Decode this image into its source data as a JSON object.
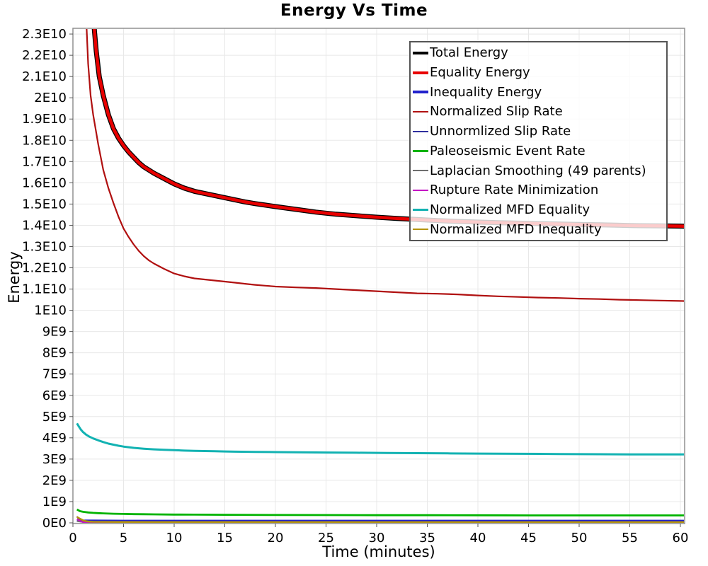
{
  "title": "Energy Vs Time",
  "x_axis": {
    "title": "Time (minutes)",
    "ticks": [
      0,
      5,
      10,
      15,
      20,
      25,
      30,
      35,
      40,
      45,
      50,
      55,
      60
    ]
  },
  "y_axis": {
    "title": "Energy",
    "ticks": [
      {
        "v": 0,
        "label": "0E0"
      },
      {
        "v": 1,
        "label": "1E9"
      },
      {
        "v": 2,
        "label": "2E9"
      },
      {
        "v": 3,
        "label": "3E9"
      },
      {
        "v": 4,
        "label": "4E9"
      },
      {
        "v": 5,
        "label": "5E9"
      },
      {
        "v": 6,
        "label": "6E9"
      },
      {
        "v": 7,
        "label": "7E9"
      },
      {
        "v": 8,
        "label": "8E9"
      },
      {
        "v": 9,
        "label": "9E9"
      },
      {
        "v": 10,
        "label": "1E10"
      },
      {
        "v": 11,
        "label": "1.1E10"
      },
      {
        "v": 12,
        "label": "1.2E10"
      },
      {
        "v": 13,
        "label": "1.3E10"
      },
      {
        "v": 14,
        "label": "1.4E10"
      },
      {
        "v": 15,
        "label": "1.5E10"
      },
      {
        "v": 16,
        "label": "1.6E10"
      },
      {
        "v": 17,
        "label": "1.7E10"
      },
      {
        "v": 18,
        "label": "1.8E10"
      },
      {
        "v": 19,
        "label": "1.9E10"
      },
      {
        "v": 20,
        "label": "2E10"
      },
      {
        "v": 21,
        "label": "2.1E10"
      },
      {
        "v": 22,
        "label": "2.2E10"
      },
      {
        "v": 23,
        "label": "2.3E10"
      }
    ]
  },
  "colors": {
    "gridline": "#e8e8e8",
    "plot_border": "#909090",
    "tick": "#555555",
    "legend_border": "#555555"
  },
  "chart_data": {
    "type": "line",
    "title": "Energy Vs Time",
    "xlabel": "Time (minutes)",
    "ylabel": "Energy",
    "xlim": [
      0,
      60.4
    ],
    "ylim": [
      0,
      23300000000
    ],
    "grid": true,
    "legend_position": "upper-right-inside",
    "values_unit": "y values in units of 1e9 (giga)",
    "series": [
      {
        "name": "Total Energy",
        "color": "#000000",
        "lw": 7,
        "points": [
          [
            1.8,
            28
          ],
          [
            1.95,
            25.5
          ],
          [
            2.1,
            23.3
          ],
          [
            2.3,
            22.2
          ],
          [
            2.6,
            21.0
          ],
          [
            3.0,
            20.1
          ],
          [
            3.5,
            19.2
          ],
          [
            4.0,
            18.55
          ],
          [
            4.5,
            18.1
          ],
          [
            5.0,
            17.75
          ],
          [
            5.5,
            17.45
          ],
          [
            6.0,
            17.2
          ],
          [
            6.5,
            16.95
          ],
          [
            7.0,
            16.75
          ],
          [
            7.5,
            16.6
          ],
          [
            8.0,
            16.45
          ],
          [
            9.0,
            16.2
          ],
          [
            10,
            15.95
          ],
          [
            11,
            15.75
          ],
          [
            12,
            15.6
          ],
          [
            13,
            15.5
          ],
          [
            14,
            15.4
          ],
          [
            15,
            15.3
          ],
          [
            16,
            15.2
          ],
          [
            17,
            15.1
          ],
          [
            18,
            15.02
          ],
          [
            19,
            14.95
          ],
          [
            20,
            14.88
          ],
          [
            22,
            14.75
          ],
          [
            24,
            14.62
          ],
          [
            26,
            14.52
          ],
          [
            28,
            14.45
          ],
          [
            30,
            14.38
          ],
          [
            32,
            14.32
          ],
          [
            34,
            14.27
          ],
          [
            36,
            14.22
          ],
          [
            38,
            14.18
          ],
          [
            40,
            14.15
          ],
          [
            42,
            14.12
          ],
          [
            44,
            14.1
          ],
          [
            46,
            14.08
          ],
          [
            48,
            14.06
          ],
          [
            50,
            14.04
          ],
          [
            52,
            14.02
          ],
          [
            54,
            14.0
          ],
          [
            56,
            13.98
          ],
          [
            58,
            13.97
          ],
          [
            60,
            13.96
          ],
          [
            61,
            13.95
          ]
        ]
      },
      {
        "name": "Equality Energy",
        "color": "#e80000",
        "lw": 4.5,
        "points": [
          [
            1.8,
            28
          ],
          [
            1.95,
            25.5
          ],
          [
            2.1,
            23.3
          ],
          [
            2.3,
            22.2
          ],
          [
            2.6,
            21.0
          ],
          [
            3.0,
            20.1
          ],
          [
            3.5,
            19.2
          ],
          [
            4.0,
            18.55
          ],
          [
            4.5,
            18.1
          ],
          [
            5.0,
            17.75
          ],
          [
            5.5,
            17.45
          ],
          [
            6.0,
            17.2
          ],
          [
            6.5,
            16.95
          ],
          [
            7.0,
            16.75
          ],
          [
            7.5,
            16.6
          ],
          [
            8.0,
            16.45
          ],
          [
            9.0,
            16.2
          ],
          [
            10,
            15.95
          ],
          [
            11,
            15.75
          ],
          [
            12,
            15.6
          ],
          [
            13,
            15.5
          ],
          [
            14,
            15.4
          ],
          [
            15,
            15.3
          ],
          [
            16,
            15.2
          ],
          [
            17,
            15.1
          ],
          [
            18,
            15.02
          ],
          [
            19,
            14.95
          ],
          [
            20,
            14.88
          ],
          [
            22,
            14.75
          ],
          [
            24,
            14.62
          ],
          [
            26,
            14.52
          ],
          [
            28,
            14.45
          ],
          [
            30,
            14.38
          ],
          [
            32,
            14.32
          ],
          [
            34,
            14.27
          ],
          [
            36,
            14.22
          ],
          [
            38,
            14.18
          ],
          [
            40,
            14.15
          ],
          [
            42,
            14.12
          ],
          [
            44,
            14.1
          ],
          [
            46,
            14.08
          ],
          [
            48,
            14.06
          ],
          [
            50,
            14.04
          ],
          [
            52,
            14.02
          ],
          [
            54,
            14.0
          ],
          [
            56,
            13.98
          ],
          [
            58,
            13.97
          ],
          [
            60,
            13.96
          ],
          [
            61,
            13.95
          ]
        ]
      },
      {
        "name": "Inequality Energy",
        "color": "#2222cc",
        "lw": 4,
        "points": [
          [
            0.4,
            0.12
          ],
          [
            0.7,
            0.1
          ],
          [
            1,
            0.09
          ],
          [
            2,
            0.085
          ],
          [
            5,
            0.08
          ],
          [
            10,
            0.08
          ],
          [
            20,
            0.08
          ],
          [
            30,
            0.08
          ],
          [
            40,
            0.08
          ],
          [
            50,
            0.08
          ],
          [
            61,
            0.08
          ]
        ]
      },
      {
        "name": "Normalized Slip Rate",
        "color": "#b01010",
        "lw": 2.2,
        "points": [
          [
            1.2,
            27
          ],
          [
            1.35,
            23.3
          ],
          [
            1.5,
            21.6
          ],
          [
            1.75,
            20.1
          ],
          [
            2.0,
            19.2
          ],
          [
            2.5,
            17.8
          ],
          [
            3.0,
            16.6
          ],
          [
            3.5,
            15.75
          ],
          [
            4.0,
            15.05
          ],
          [
            4.5,
            14.4
          ],
          [
            5.0,
            13.85
          ],
          [
            5.5,
            13.45
          ],
          [
            6.0,
            13.1
          ],
          [
            6.5,
            12.8
          ],
          [
            7.0,
            12.55
          ],
          [
            7.5,
            12.35
          ],
          [
            8.0,
            12.2
          ],
          [
            9.0,
            11.95
          ],
          [
            10,
            11.73
          ],
          [
            11,
            11.6
          ],
          [
            12,
            11.5
          ],
          [
            13,
            11.45
          ],
          [
            14,
            11.4
          ],
          [
            15,
            11.35
          ],
          [
            16,
            11.3
          ],
          [
            17,
            11.25
          ],
          [
            18,
            11.2
          ],
          [
            19,
            11.16
          ],
          [
            20,
            11.12
          ],
          [
            22,
            11.08
          ],
          [
            24,
            11.05
          ],
          [
            26,
            11.0
          ],
          [
            28,
            10.95
          ],
          [
            30,
            10.9
          ],
          [
            32,
            10.85
          ],
          [
            34,
            10.8
          ],
          [
            36,
            10.78
          ],
          [
            38,
            10.75
          ],
          [
            40,
            10.7
          ],
          [
            42,
            10.66
          ],
          [
            44,
            10.63
          ],
          [
            46,
            10.6
          ],
          [
            48,
            10.58
          ],
          [
            50,
            10.55
          ],
          [
            52,
            10.53
          ],
          [
            54,
            10.5
          ],
          [
            56,
            10.48
          ],
          [
            58,
            10.46
          ],
          [
            60,
            10.44
          ],
          [
            61,
            10.43
          ]
        ]
      },
      {
        "name": "Unnormlized Slip Rate",
        "color": "#2f2f9e",
        "lw": 2,
        "points": [
          [
            0.4,
            0.3
          ],
          [
            0.6,
            0.15
          ],
          [
            0.9,
            0.05
          ],
          [
            1.5,
            0.02
          ],
          [
            3,
            0.015
          ],
          [
            10,
            0.012
          ],
          [
            30,
            0.012
          ],
          [
            61,
            0.012
          ]
        ]
      },
      {
        "name": "Paleoseismic Event Rate",
        "color": "#00b300",
        "lw": 2.8,
        "points": [
          [
            0.4,
            0.63
          ],
          [
            0.7,
            0.55
          ],
          [
            1.0,
            0.52
          ],
          [
            1.5,
            0.49
          ],
          [
            2.0,
            0.47
          ],
          [
            2.5,
            0.455
          ],
          [
            3.0,
            0.445
          ],
          [
            4.0,
            0.43
          ],
          [
            5.0,
            0.42
          ],
          [
            6.0,
            0.41
          ],
          [
            7.0,
            0.405
          ],
          [
            8.0,
            0.4
          ],
          [
            10,
            0.39
          ],
          [
            12,
            0.385
          ],
          [
            15,
            0.38
          ],
          [
            20,
            0.37
          ],
          [
            25,
            0.365
          ],
          [
            30,
            0.36
          ],
          [
            35,
            0.36
          ],
          [
            40,
            0.355
          ],
          [
            45,
            0.35
          ],
          [
            50,
            0.35
          ],
          [
            55,
            0.35
          ],
          [
            60,
            0.35
          ],
          [
            61,
            0.35
          ]
        ]
      },
      {
        "name": "Laplacian Smoothing (49 parents)",
        "color": "#6e6e6e",
        "lw": 2,
        "points": [
          [
            0.4,
            0.08
          ],
          [
            1,
            0.04
          ],
          [
            2,
            0.03
          ],
          [
            5,
            0.025
          ],
          [
            10,
            0.02
          ],
          [
            30,
            0.02
          ],
          [
            61,
            0.02
          ]
        ]
      },
      {
        "name": "Rupture Rate Minimization",
        "color": "#c414c4",
        "lw": 2.2,
        "points": [
          [
            0.4,
            0.17
          ],
          [
            0.6,
            0.12
          ],
          [
            0.8,
            0.07
          ],
          [
            1.0,
            0.03
          ],
          [
            1.3,
            0.012
          ],
          [
            2,
            0.006
          ],
          [
            5,
            0.005
          ],
          [
            20,
            0.005
          ],
          [
            61,
            0.005
          ]
        ]
      },
      {
        "name": "Normalized MFD Equality",
        "color": "#12b2b2",
        "lw": 3,
        "points": [
          [
            0.4,
            4.68
          ],
          [
            0.6,
            4.52
          ],
          [
            0.8,
            4.38
          ],
          [
            1.0,
            4.27
          ],
          [
            1.3,
            4.15
          ],
          [
            1.6,
            4.06
          ],
          [
            2.0,
            3.97
          ],
          [
            2.5,
            3.88
          ],
          [
            3.0,
            3.8
          ],
          [
            3.5,
            3.73
          ],
          [
            4.0,
            3.68
          ],
          [
            4.5,
            3.63
          ],
          [
            5.0,
            3.59
          ],
          [
            5.5,
            3.56
          ],
          [
            6.0,
            3.53
          ],
          [
            7.0,
            3.49
          ],
          [
            8.0,
            3.46
          ],
          [
            9.0,
            3.44
          ],
          [
            10,
            3.42
          ],
          [
            11,
            3.4
          ],
          [
            12,
            3.39
          ],
          [
            13,
            3.38
          ],
          [
            14,
            3.37
          ],
          [
            15,
            3.36
          ],
          [
            16,
            3.35
          ],
          [
            18,
            3.34
          ],
          [
            20,
            3.33
          ],
          [
            22,
            3.32
          ],
          [
            25,
            3.31
          ],
          [
            28,
            3.3
          ],
          [
            31,
            3.29
          ],
          [
            34,
            3.28
          ],
          [
            37,
            3.27
          ],
          [
            40,
            3.26
          ],
          [
            44,
            3.25
          ],
          [
            48,
            3.24
          ],
          [
            52,
            3.23
          ],
          [
            56,
            3.22
          ],
          [
            60,
            3.22
          ],
          [
            61,
            3.22
          ]
        ]
      },
      {
        "name": "Normalized MFD Inequality",
        "color": "#b5940e",
        "lw": 2.5,
        "points": [
          [
            0.4,
            0.28
          ],
          [
            0.6,
            0.22
          ],
          [
            0.8,
            0.17
          ],
          [
            1.0,
            0.12
          ],
          [
            1.3,
            0.08
          ],
          [
            1.6,
            0.06
          ],
          [
            2,
            0.05
          ],
          [
            3,
            0.045
          ],
          [
            5,
            0.04
          ],
          [
            8,
            0.038
          ],
          [
            12,
            0.036
          ],
          [
            20,
            0.035
          ],
          [
            30,
            0.034
          ],
          [
            40,
            0.033
          ],
          [
            50,
            0.032
          ],
          [
            61,
            0.032
          ]
        ]
      }
    ]
  }
}
